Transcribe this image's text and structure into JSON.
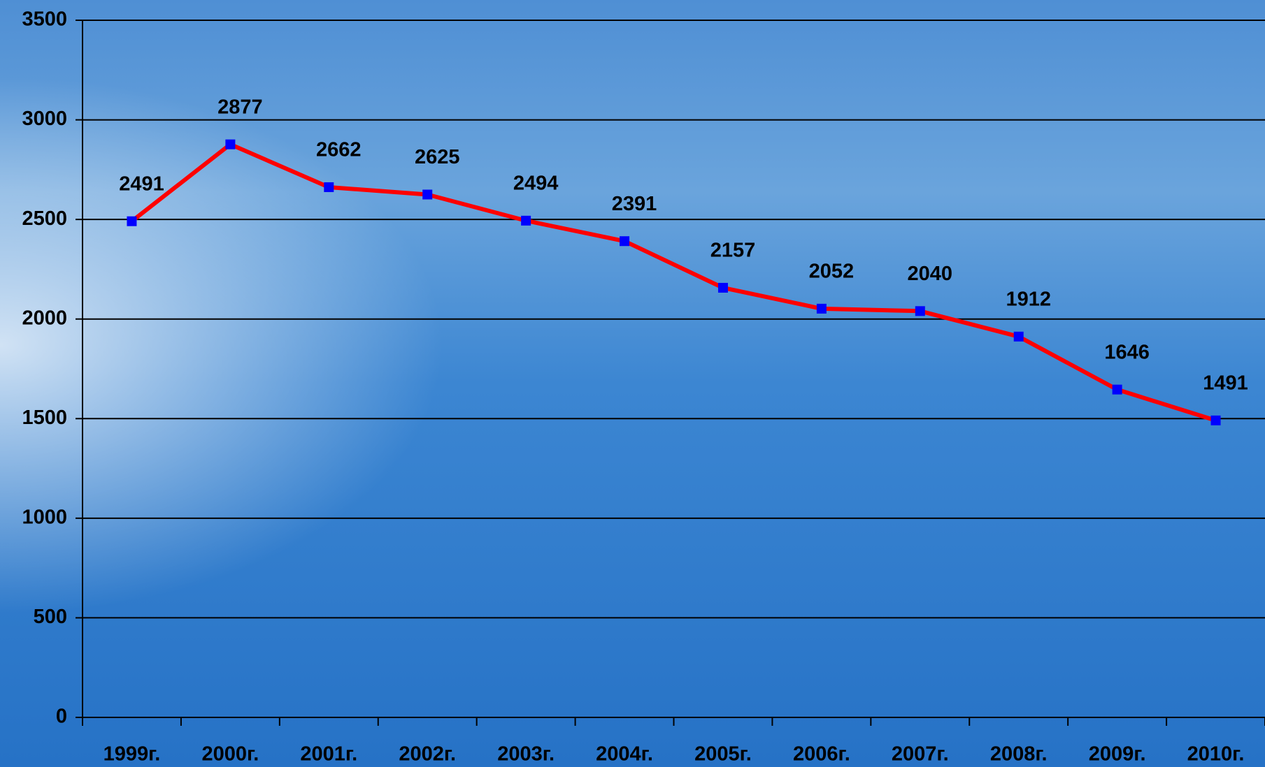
{
  "chart_data": {
    "type": "line",
    "categories": [
      "1999г.",
      "2000г.",
      "2001г.",
      "2002г.",
      "2003г.",
      "2004г.",
      "2005г.",
      "2006г.",
      "2007г.",
      "2008г.",
      "2009г.",
      "2010г."
    ],
    "series": [
      {
        "color": "#ff0000",
        "marker_color": "#0000ff",
        "values": [
          2491,
          2877,
          2662,
          2625,
          2494,
          2391,
          2157,
          2052,
          2040,
          1912,
          1646,
          1491
        ]
      }
    ],
    "ylim": [
      0,
      3500
    ],
    "yticks": [
      0,
      500,
      1000,
      1500,
      2000,
      2500,
      3000,
      3500
    ],
    "grid": true
  }
}
